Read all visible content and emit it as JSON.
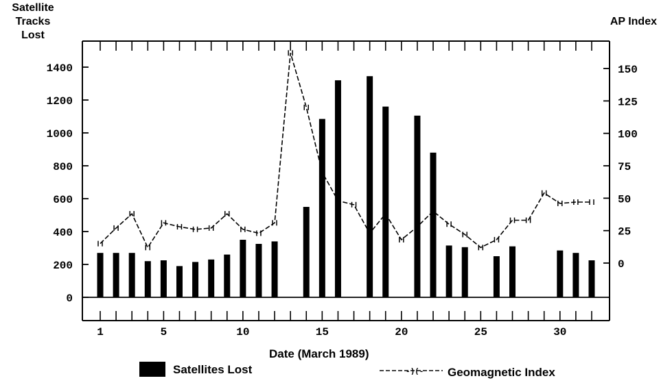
{
  "labels": {
    "left_axis_title_lines": [
      "Satellite",
      "Tracks",
      "Lost"
    ],
    "right_axis_title": "AP Index",
    "x_axis_title": "Date  (March 1989)",
    "legend_bars": "Satellites Lost",
    "legend_line": "Geomagnetic  Index"
  },
  "chart_data": {
    "type": "bar",
    "xlabel": "Date  (March 1989)",
    "ylabel": "Satellite Tracks Lost",
    "y2label": "AP Index",
    "xlim": [
      1,
      32
    ],
    "ylim": [
      0,
      1500
    ],
    "y2lim": [
      -20,
      165
    ],
    "x_ticks": [
      1,
      5,
      10,
      15,
      20,
      25,
      30
    ],
    "y_ticks": [
      0,
      200,
      400,
      600,
      800,
      1000,
      1200,
      1400
    ],
    "y_tick_labels": [
      "0",
      "200",
      "400",
      "600",
      "800",
      "1000",
      "1200",
      "1400"
    ],
    "y2_ticks": [
      0,
      25,
      50,
      75,
      100,
      125,
      150
    ],
    "grid": false,
    "series": [
      {
        "name": "Satellites Lost",
        "type": "bar",
        "axis": "left",
        "x": [
          1,
          2,
          3,
          4,
          5,
          6,
          7,
          8,
          9,
          10,
          11,
          12,
          14,
          15,
          16,
          18,
          19,
          21,
          22,
          23,
          24,
          26,
          27,
          30,
          31,
          32
        ],
        "values": [
          270,
          270,
          270,
          220,
          225,
          190,
          215,
          230,
          260,
          350,
          325,
          340,
          550,
          1085,
          1320,
          1345,
          1160,
          1105,
          880,
          315,
          305,
          250,
          310,
          285,
          270,
          225
        ]
      },
      {
        "name": "Geomagnetic  Index",
        "type": "line",
        "axis": "right",
        "x": [
          1,
          2,
          3,
          4,
          5,
          6,
          7,
          8,
          9,
          10,
          11,
          12,
          13,
          14,
          15,
          16,
          17,
          18,
          19,
          20,
          21,
          22,
          23,
          24,
          25,
          26,
          27,
          28,
          29,
          30,
          31,
          32
        ],
        "values": [
          15,
          27,
          38,
          12,
          31,
          28,
          26,
          27,
          38,
          26,
          23,
          31,
          162,
          120,
          70,
          48,
          45,
          23,
          38,
          18,
          28,
          40,
          30,
          22,
          12,
          18,
          33,
          33,
          54,
          46,
          47,
          47
        ]
      }
    ]
  }
}
